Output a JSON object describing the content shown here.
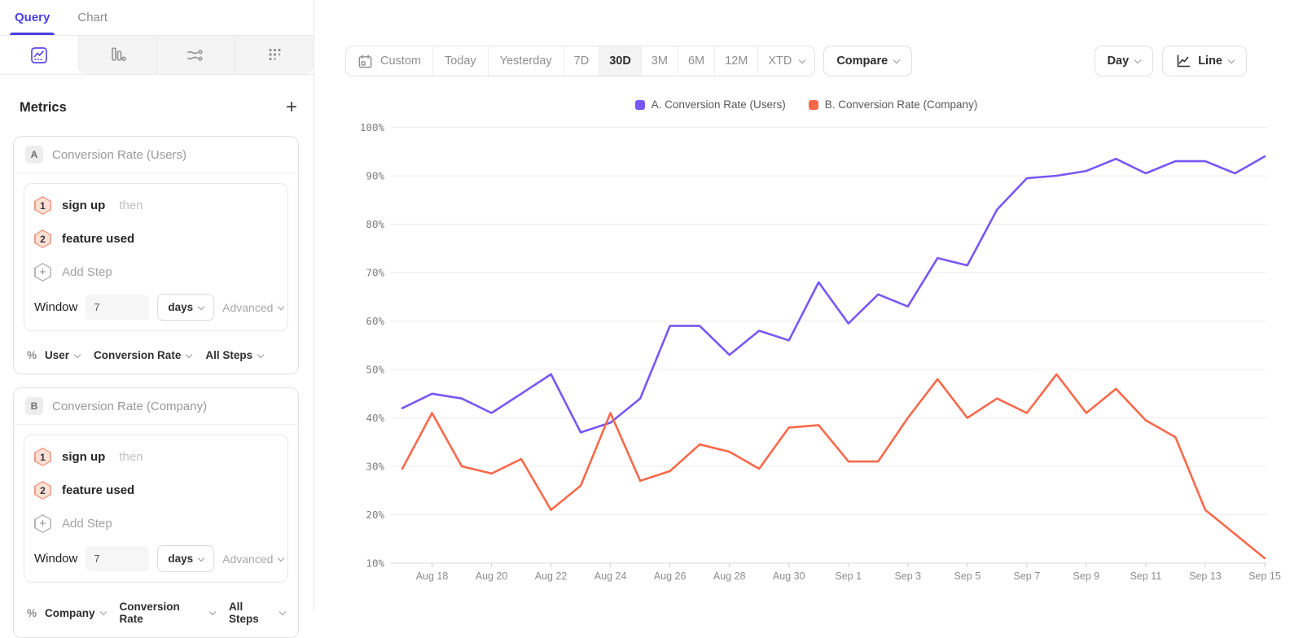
{
  "colors": {
    "accent": "#4b3fe4",
    "series_a": "#7857F5",
    "series_b": "#F8694B"
  },
  "sidebar": {
    "tabs": [
      {
        "label": "Query"
      },
      {
        "label": "Chart"
      }
    ],
    "chart_type_tabs": [
      "insights",
      "funnels",
      "flows",
      "retention"
    ],
    "metrics_header": {
      "title": "Metrics",
      "add_label": "+"
    },
    "metric_cards": [
      {
        "badge": "A",
        "title": "Conversion Rate (Users)",
        "steps": [
          {
            "num": "1",
            "label": "sign up",
            "suffix": "then"
          },
          {
            "num": "2",
            "label": "feature used",
            "suffix": ""
          }
        ],
        "add_step": {
          "icon_label": "+",
          "label": "Add Step"
        },
        "window": {
          "label": "Window",
          "value": "7",
          "unit": "days",
          "advanced_label": "Advanced"
        },
        "measure": {
          "symbol": "%",
          "entity": "User",
          "metric": "Conversion Rate",
          "scope": "All Steps"
        }
      },
      {
        "badge": "B",
        "title": "Conversion Rate (Company)",
        "steps": [
          {
            "num": "1",
            "label": "sign up",
            "suffix": "then"
          },
          {
            "num": "2",
            "label": "feature used",
            "suffix": ""
          }
        ],
        "add_step": {
          "icon_label": "+",
          "label": "Add Step"
        },
        "window": {
          "label": "Window",
          "value": "7",
          "unit": "days",
          "advanced_label": "Advanced"
        },
        "measure": {
          "symbol": "%",
          "entity": "Company",
          "metric": "Conversion Rate",
          "scope": "All Steps"
        }
      }
    ]
  },
  "toolbar": {
    "date_ranges": [
      {
        "label": "Custom"
      },
      {
        "label": "Today"
      },
      {
        "label": "Yesterday"
      },
      {
        "label": "7D"
      },
      {
        "label": "30D",
        "active": true
      },
      {
        "label": "3M"
      },
      {
        "label": "6M"
      },
      {
        "label": "12M"
      },
      {
        "label": "XTD"
      }
    ],
    "compare_label": "Compare",
    "interval_label": "Day",
    "chart_style_label": "Line"
  },
  "legend": [
    {
      "label": "A. Conversion Rate (Users)",
      "color": "#7857F5"
    },
    {
      "label": "B. Conversion Rate (Company)",
      "color": "#F8694B"
    }
  ],
  "chart_data": {
    "type": "line",
    "title": "",
    "xlabel": "",
    "ylabel": "",
    "ylim": [
      10,
      100
    ],
    "grid": true,
    "legend_position": "top-center",
    "y_ticks": [
      10,
      20,
      30,
      40,
      50,
      60,
      70,
      80,
      90,
      100
    ],
    "y_tick_suffix": "%",
    "x": [
      "Aug 17",
      "Aug 18",
      "Aug 19",
      "Aug 20",
      "Aug 21",
      "Aug 22",
      "Aug 23",
      "Aug 24",
      "Aug 25",
      "Aug 26",
      "Aug 27",
      "Aug 28",
      "Aug 29",
      "Aug 30",
      "Aug 31",
      "Sep 1",
      "Sep 2",
      "Sep 3",
      "Sep 4",
      "Sep 5",
      "Sep 6",
      "Sep 7",
      "Sep 8",
      "Sep 9",
      "Sep 10",
      "Sep 11",
      "Sep 12",
      "Sep 13",
      "Sep 14",
      "Sep 15"
    ],
    "x_tick_labels": [
      "Aug 18",
      "Aug 20",
      "Aug 22",
      "Aug 24",
      "Aug 26",
      "Aug 28",
      "Aug 30",
      "Sep 1",
      "Sep 3",
      "Sep 5",
      "Sep 7",
      "Sep 9",
      "Sep 11",
      "Sep 13",
      "Sep 15"
    ],
    "series": [
      {
        "name": "A. Conversion Rate (Users)",
        "color": "#7857F5",
        "values": [
          42,
          45,
          44,
          41,
          45,
          49,
          37,
          39,
          44,
          59,
          59,
          53,
          58,
          56,
          68,
          59.5,
          65.5,
          63,
          73,
          71.5,
          83,
          89.5,
          90,
          91,
          93.5,
          90.5,
          93,
          93,
          90.5,
          94
        ]
      },
      {
        "name": "B. Conversion Rate (Company)",
        "color": "#F8694B",
        "values": [
          29.5,
          41,
          30,
          28.5,
          31.5,
          21,
          26,
          41,
          27,
          29,
          34.5,
          33,
          29.5,
          38,
          38.5,
          31,
          31,
          40,
          48,
          40,
          44,
          41,
          49,
          41,
          46,
          39.5,
          36,
          21,
          16,
          11
        ]
      }
    ]
  }
}
